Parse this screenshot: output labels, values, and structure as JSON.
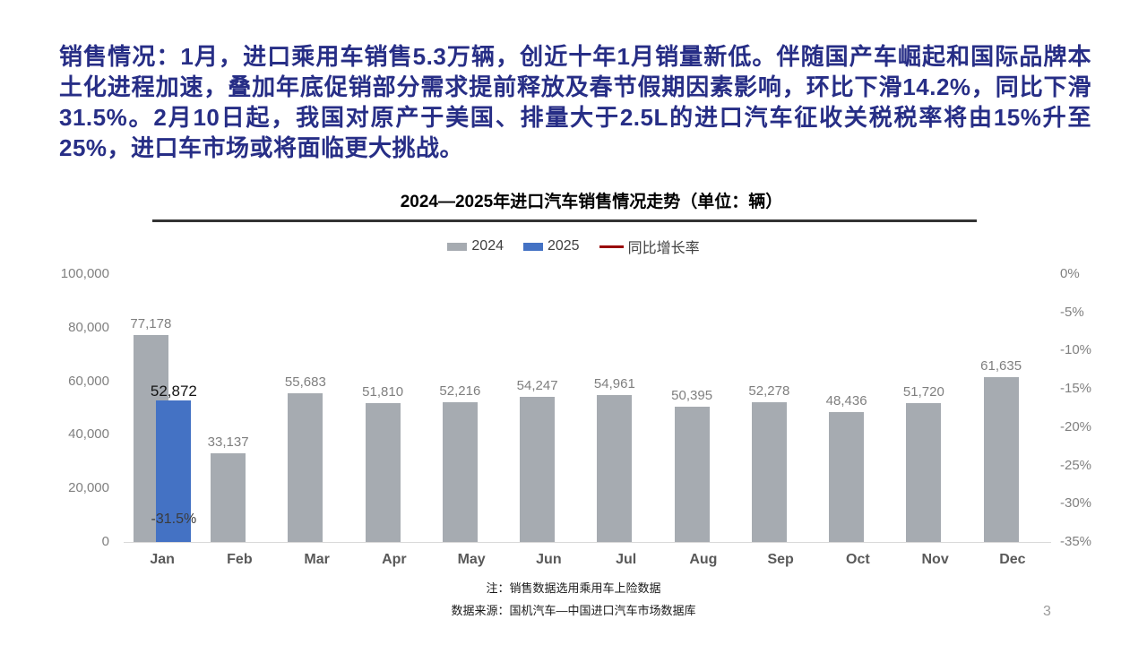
{
  "slide": {
    "page_number": "3"
  },
  "header": {
    "text": "销售情况：1月，进口乘用车销售5.3万辆，创近十年1月销量新低。伴随国产车崛起和国际品牌本土化进程加速，叠加年底促销部分需求提前释放及春节假期因素影响，环比下滑14.2%，同比下滑31.5%。2月10日起，我国对原产于美国、排量大于2.5L的进口汽车征收关税税率将由15%升至25%，进口车市场或将面临更大挑战。"
  },
  "chart": {
    "notes": [
      "注：销售数据选用乘用车上险数据",
      "数据来源：国机汽车—中国进口汽车市场数据库"
    ]
  },
  "chart_data": {
    "type": "bar",
    "title": "2024—2025年进口汽车销售情况走势（单位：辆）",
    "xlabel": "",
    "ylabel": "",
    "legend_position": "top",
    "grid": false,
    "categories": [
      "Jan",
      "Feb",
      "Mar",
      "Apr",
      "May",
      "Jun",
      "Jul",
      "Aug",
      "Sep",
      "Oct",
      "Nov",
      "Dec"
    ],
    "series": [
      {
        "name": "2024",
        "type": "bar",
        "color": "#a6abb1",
        "values": [
          77178,
          33137,
          55683,
          51810,
          52216,
          54247,
          54961,
          50395,
          52278,
          48436,
          51720,
          61635
        ]
      },
      {
        "name": "2025",
        "type": "bar",
        "color": "#4472c4",
        "values": [
          52872,
          null,
          null,
          null,
          null,
          null,
          null,
          null,
          null,
          null,
          null,
          null
        ]
      },
      {
        "name": "同比增长率",
        "type": "line",
        "axis": "right",
        "color": "#990000",
        "values": [
          -31.5,
          null,
          null,
          null,
          null,
          null,
          null,
          null,
          null,
          null,
          null,
          null
        ],
        "label_format": "percent"
      }
    ],
    "left_axis": {
      "min": 0,
      "max": 100000,
      "ticks": [
        "100,000",
        "80,000",
        "60,000",
        "40,000",
        "20,000",
        "0"
      ]
    },
    "right_axis": {
      "min": -35,
      "max": 0,
      "ticks": [
        "0%",
        "-5%",
        "-10%",
        "-15%",
        "-20%",
        "-25%",
        "-30%",
        "-35%"
      ]
    }
  }
}
